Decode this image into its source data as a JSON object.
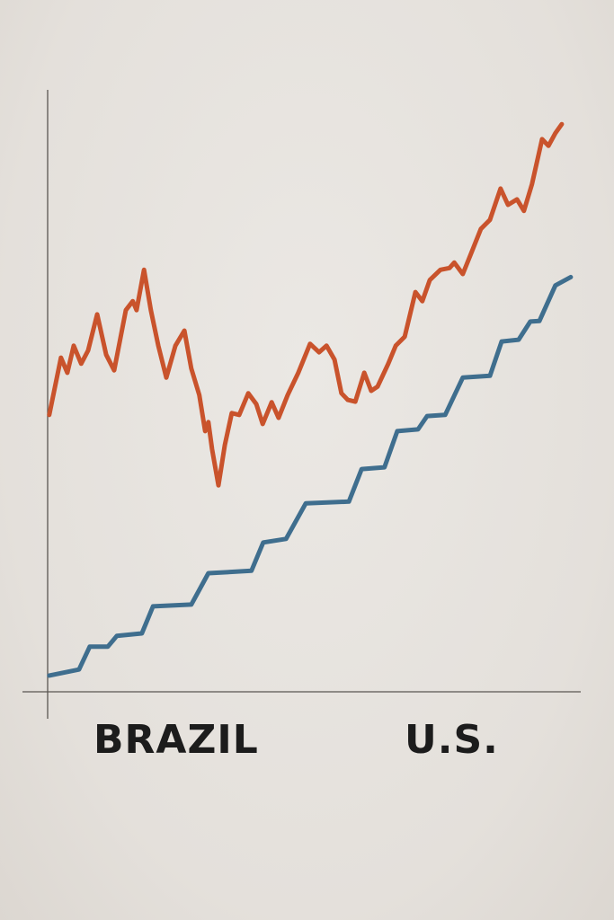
{
  "chart_data": {
    "type": "line",
    "title": "",
    "xlabel": "",
    "ylabel": "",
    "xlim": [
      0,
      100
    ],
    "ylim": [
      0,
      100
    ],
    "grid": false,
    "legend": "none",
    "axis_labels": [
      "BRAZIL",
      "U.S."
    ],
    "series": [
      {
        "color": "#c9532c",
        "style": "jagged",
        "x": [
          0.3,
          2.5,
          3.7,
          4.9,
          6.3,
          7.6,
          9.3,
          11.0,
          12.5,
          14.7,
          16.0,
          16.7,
          18.1,
          19.4,
          20.8,
          22.3,
          24.0,
          25.7,
          27.0,
          28.5,
          29.6,
          30.2,
          30.9,
          32.1,
          33.3,
          34.6,
          36.0,
          37.7,
          39.2,
          40.4,
          42.1,
          43.4,
          45.1,
          47.1,
          49.3,
          51.0,
          52.4,
          53.9,
          55.2,
          56.4,
          57.8,
          59.5,
          60.8,
          62.0,
          64.0,
          65.4,
          67.1,
          69.1,
          70.4,
          71.8,
          73.8,
          75.5,
          76.4,
          78.0,
          79.7,
          81.4,
          83.1,
          85.1,
          86.5,
          88.2,
          89.5,
          91.0,
          92.9,
          94.1,
          95.4,
          96.6
        ],
        "y": [
          46.0,
          55.5,
          53.0,
          57.5,
          54.5,
          56.7,
          62.7,
          56.0,
          53.4,
          63.4,
          64.9,
          63.4,
          70.1,
          63.4,
          57.5,
          52.2,
          57.5,
          60.0,
          53.7,
          49.3,
          43.3,
          44.8,
          40.3,
          34.3,
          41.0,
          46.3,
          46.0,
          49.6,
          47.8,
          44.5,
          48.1,
          45.5,
          49.3,
          53.0,
          57.8,
          56.4,
          57.5,
          55.2,
          49.6,
          48.5,
          48.2,
          53.0,
          50.0,
          50.7,
          54.5,
          57.5,
          59.0,
          66.4,
          64.9,
          68.4,
          70.1,
          70.4,
          71.3,
          69.4,
          73.1,
          76.9,
          78.4,
          83.6,
          80.9,
          81.8,
          79.9,
          84.3,
          91.8,
          90.7,
          92.8,
          94.3
        ]
      },
      {
        "color": "#3f6e8e",
        "style": "step",
        "x": [
          0.3,
          5.9,
          7.9,
          11.3,
          13.0,
          17.7,
          19.8,
          27.0,
          30.2,
          38.3,
          40.5,
          44.8,
          48.5,
          56.6,
          59.0,
          63.3,
          65.7,
          69.6,
          71.3,
          74.7,
          78.0,
          83.1,
          85.3,
          88.5,
          90.7,
          92.4,
          95.4,
          98.3
        ],
        "y": [
          2.7,
          3.7,
          7.5,
          7.5,
          9.3,
          9.7,
          14.2,
          14.5,
          19.7,
          20.1,
          24.8,
          25.4,
          31.3,
          31.6,
          37.0,
          37.3,
          43.3,
          43.6,
          45.8,
          46.0,
          52.2,
          52.5,
          58.2,
          58.5,
          61.5,
          61.6,
          67.5,
          68.9
        ]
      }
    ]
  }
}
